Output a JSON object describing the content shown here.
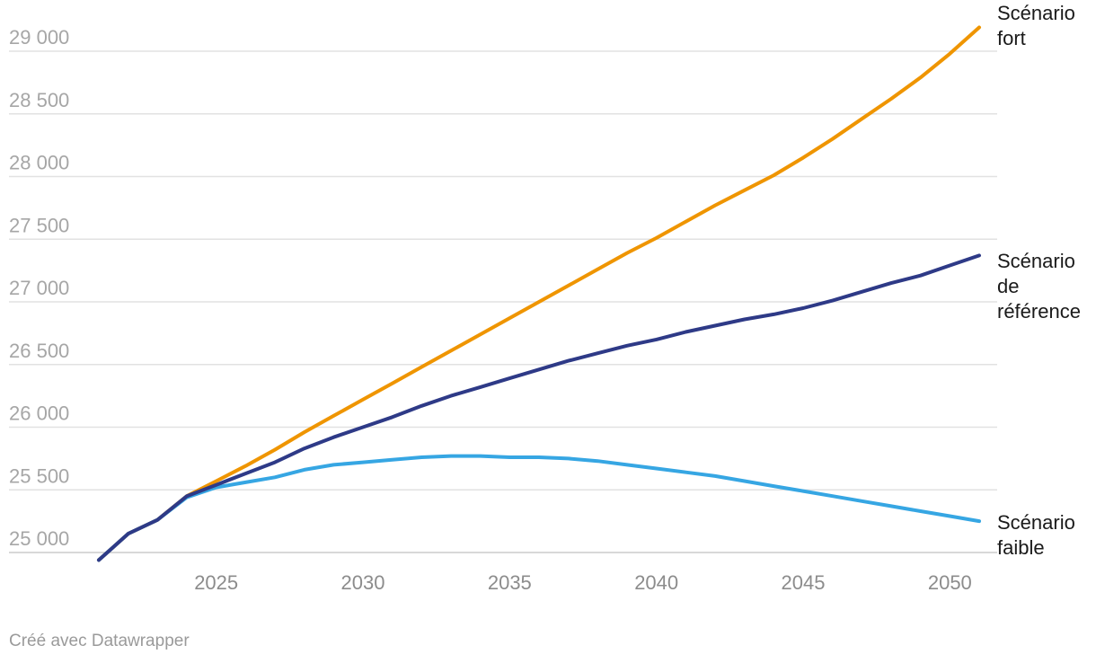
{
  "chart_data": {
    "type": "line",
    "ylim": [
      25000,
      29000
    ],
    "xlim": [
      2021,
      2051
    ],
    "y_ticks": [
      {
        "value": 25000,
        "label": "25 000"
      },
      {
        "value": 25500,
        "label": "25 500"
      },
      {
        "value": 26000,
        "label": "26 000"
      },
      {
        "value": 26500,
        "label": "26 500"
      },
      {
        "value": 27000,
        "label": "27 000"
      },
      {
        "value": 27500,
        "label": "27 500"
      },
      {
        "value": 28000,
        "label": "28 000"
      },
      {
        "value": 28500,
        "label": "28 500"
      },
      {
        "value": 29000,
        "label": "29 000"
      }
    ],
    "x_ticks": [
      {
        "value": 2025,
        "label": "2025"
      },
      {
        "value": 2030,
        "label": "2030"
      },
      {
        "value": 2035,
        "label": "2035"
      },
      {
        "value": 2040,
        "label": "2040"
      },
      {
        "value": 2045,
        "label": "2045"
      },
      {
        "value": 2050,
        "label": "2050"
      }
    ],
    "grid": true,
    "legend": "direct labels at line ends (right)",
    "x": [
      2021,
      2022,
      2023,
      2024,
      2025,
      2026,
      2027,
      2028,
      2029,
      2030,
      2031,
      2032,
      2033,
      2034,
      2035,
      2036,
      2037,
      2038,
      2039,
      2040,
      2041,
      2042,
      2043,
      2044,
      2045,
      2046,
      2047,
      2048,
      2049,
      2050,
      2051
    ],
    "series": [
      {
        "name": "Scénario fort",
        "label_lines": [
          "Scénario",
          "fort"
        ],
        "color": "#ef9500",
        "values": [
          24940,
          25150,
          25260,
          25450,
          25570,
          25690,
          25820,
          25960,
          26090,
          26220,
          26350,
          26480,
          26610,
          26740,
          26870,
          27000,
          27130,
          27260,
          27390,
          27510,
          27640,
          27770,
          27890,
          28010,
          28150,
          28300,
          28460,
          28620,
          28790,
          28980,
          29190
        ]
      },
      {
        "name": "Scénario de référence",
        "label_lines": [
          "Scénario",
          "de",
          "référence"
        ],
        "color": "#2e3a87",
        "values": [
          24940,
          25150,
          25260,
          25450,
          25540,
          25630,
          25720,
          25830,
          25920,
          26000,
          26080,
          26170,
          26250,
          26320,
          26390,
          26460,
          26530,
          26590,
          26650,
          26700,
          26760,
          26810,
          26860,
          26900,
          26950,
          27010,
          27080,
          27150,
          27210,
          27290,
          27370
        ]
      },
      {
        "name": "Scénario faible",
        "label_lines": [
          "Scénario",
          "faible"
        ],
        "color": "#36a6e3",
        "values": [
          24940,
          25150,
          25260,
          25440,
          25520,
          25560,
          25600,
          25660,
          25700,
          25720,
          25740,
          25760,
          25770,
          25770,
          25760,
          25760,
          25750,
          25730,
          25700,
          25670,
          25640,
          25610,
          25570,
          25530,
          25490,
          25450,
          25410,
          25370,
          25330,
          25290,
          25250
        ]
      }
    ]
  },
  "footer": {
    "credit": "Créé avec Datawrapper"
  }
}
